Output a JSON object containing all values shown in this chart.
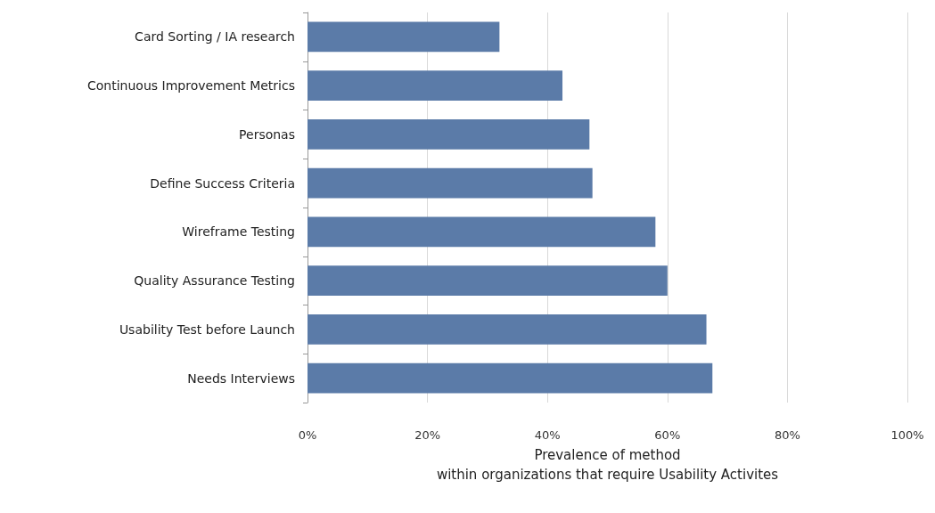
{
  "chart_data": {
    "type": "bar",
    "orientation": "horizontal",
    "xlabel": "Prevalence of method\nwithin organizations that require Usability Activites",
    "categories": [
      "Card Sorting / IA research",
      "Continuous Improvement Metrics",
      "Personas",
      "Define Success Criteria",
      "Wireframe Testing",
      "Quality Assurance Testing",
      "Usability Test before Launch",
      "Needs Interviews"
    ],
    "values": [
      32,
      42.5,
      47,
      47.5,
      58,
      60,
      66.5,
      67.5
    ],
    "color": "#5b7ba8",
    "xlim": [
      0,
      100
    ],
    "xticks": [
      {
        "value": 0,
        "label": "0%"
      },
      {
        "value": 20,
        "label": "20%"
      },
      {
        "value": 40,
        "label": "40%"
      },
      {
        "value": 60,
        "label": "60%"
      },
      {
        "value": 80,
        "label": "80%"
      },
      {
        "value": 100,
        "label": "100%"
      }
    ],
    "grid": "x"
  }
}
